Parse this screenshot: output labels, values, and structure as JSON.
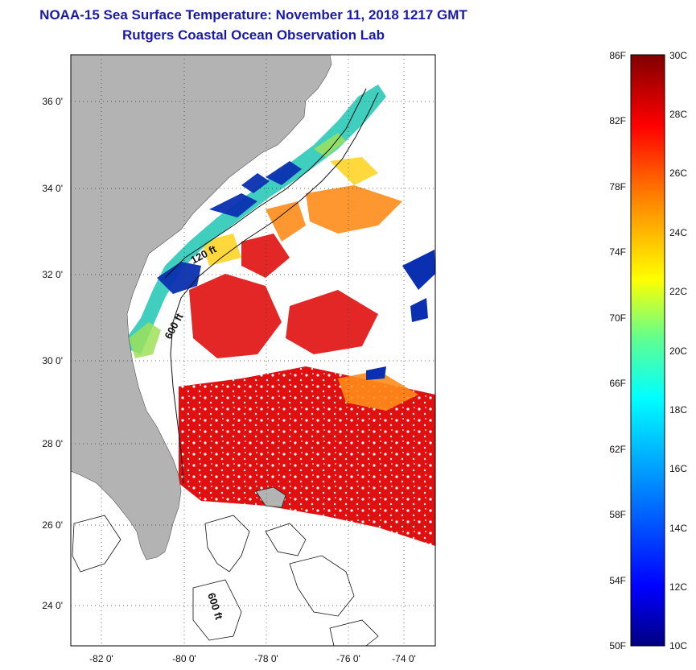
{
  "title": {
    "line1": "NOAA-15 Sea Surface Temperature:  November 11, 2018 1217 GMT",
    "line2": "Rutgers Coastal Ocean Observation Lab"
  },
  "axes": {
    "lat_labels": [
      "36 0'",
      "34 0'",
      "32 0'",
      "30 0'",
      "28 0'",
      "26 0'",
      "24 0'"
    ],
    "lon_labels": [
      "-82 0'",
      "-80 0'",
      "-78 0'",
      "-76 0'",
      "-74 0'"
    ]
  },
  "contour_labels": {
    "c120": "120 ft",
    "c600a": "600 ft",
    "c600b": "600 ft"
  },
  "colorbar": {
    "fahrenheit": [
      "86F",
      "82F",
      "78F",
      "74F",
      "70F",
      "66F",
      "62F",
      "58F",
      "54F",
      "50F"
    ],
    "celsius": [
      "30C",
      "28C",
      "26C",
      "24C",
      "22C",
      "20C",
      "18C",
      "16C",
      "14C",
      "12C",
      "10C"
    ]
  },
  "colors": {
    "land": "#b3b3b3",
    "warm": "#e01010",
    "warm2": "#f04a10",
    "mid": "#ffaa00",
    "cool": "#26c6c0",
    "cold": "#0a2fb0",
    "title": "#1a1aa6"
  }
}
